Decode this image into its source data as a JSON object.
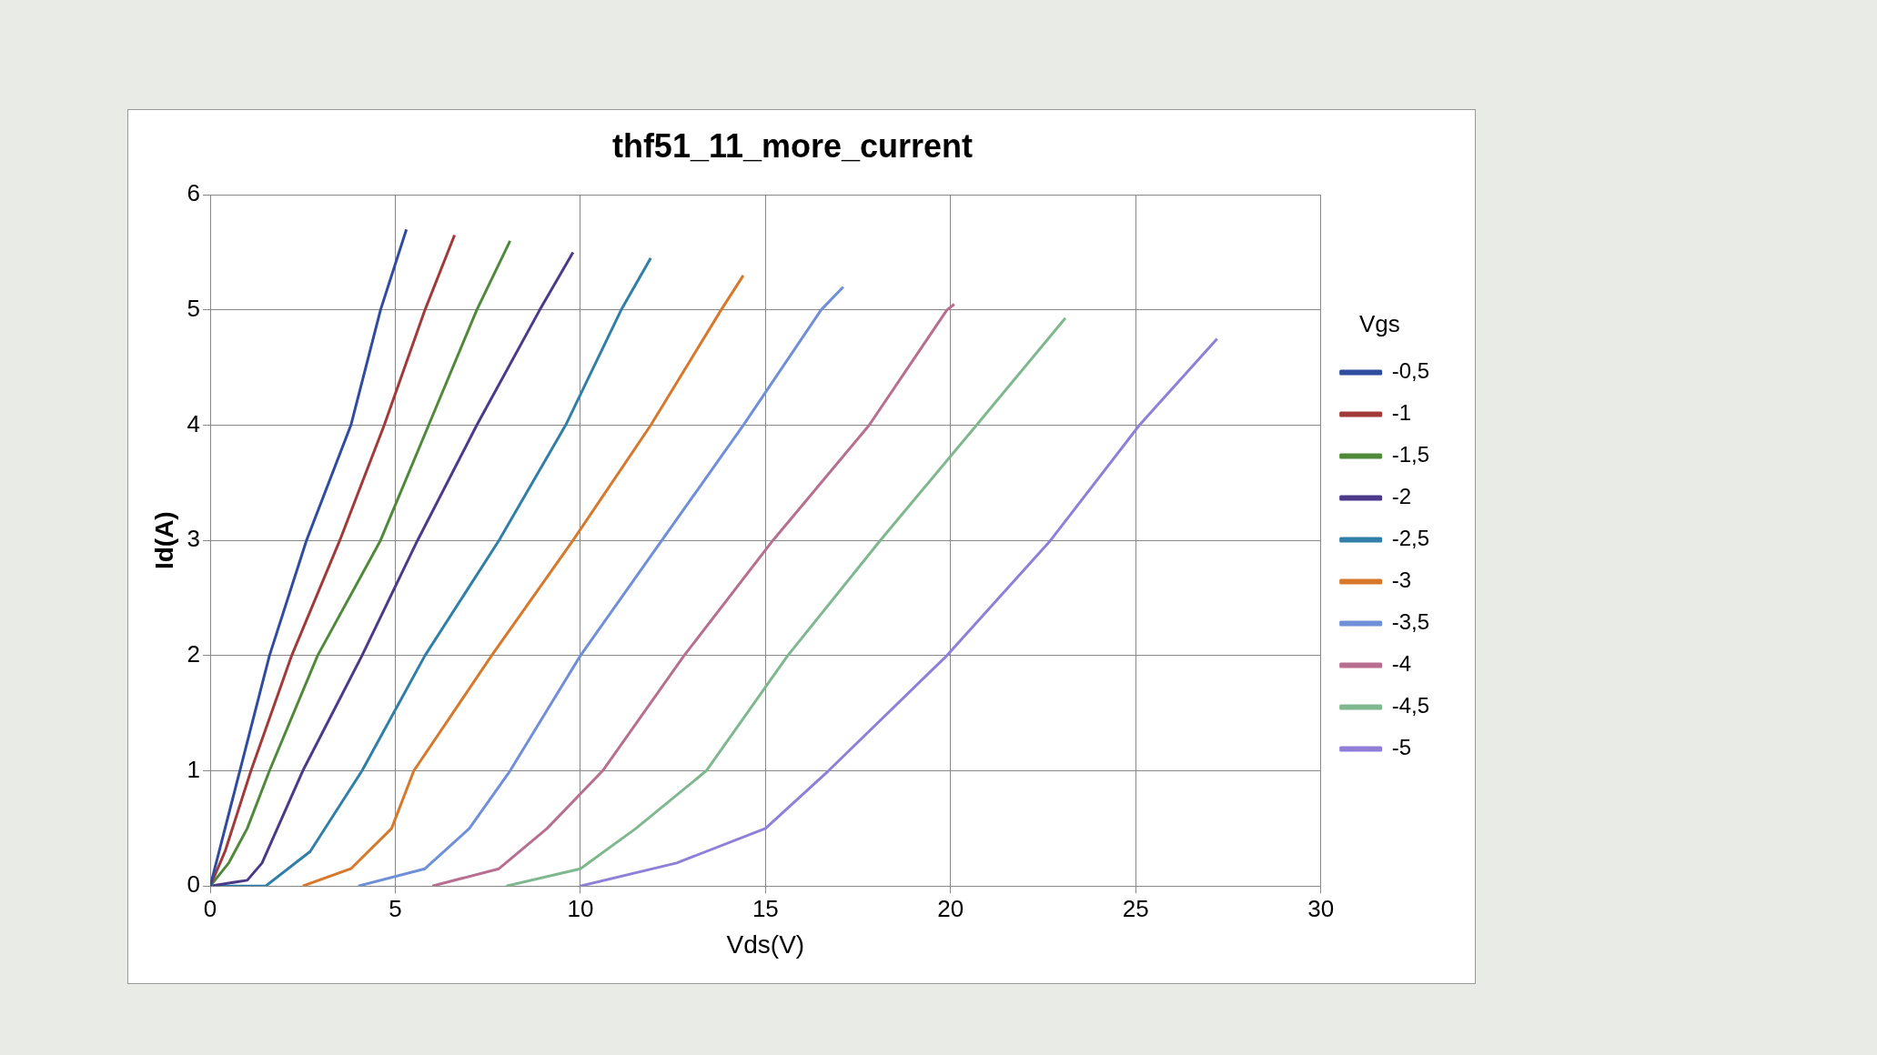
{
  "chart_data": {
    "type": "line",
    "title": "thf51_11_more_current",
    "xlabel": "Vds(V)",
    "ylabel": "Id(A)",
    "legend_title": "Vgs",
    "legend": "right",
    "grid": true,
    "marker": "none",
    "line_style": "solid",
    "xlim": [
      0,
      30
    ],
    "xticks": [
      0,
      5,
      10,
      15,
      20,
      25,
      30
    ],
    "ylim": [
      0,
      6
    ],
    "yticks": [
      0,
      1,
      2,
      3,
      4,
      5,
      6
    ],
    "series": [
      {
        "name": "-0,5",
        "color": "#2f4c9e",
        "x": [
          0,
          0.8,
          1.6,
          2.6,
          3.8,
          4.6,
          5.3
        ],
        "values": [
          0,
          1,
          2,
          3,
          4,
          5,
          5.7
        ]
      },
      {
        "name": "-1",
        "color": "#a23a3a",
        "x": [
          0,
          0.4,
          1.1,
          2.2,
          3.5,
          4.7,
          5.8,
          6.6
        ],
        "values": [
          0,
          0.3,
          1,
          2,
          3,
          4,
          5,
          5.65
        ]
      },
      {
        "name": "-1,5",
        "color": "#4f8a3a",
        "x": [
          0,
          0.5,
          1.0,
          1.6,
          2.9,
          4.6,
          5.9,
          7.2,
          8.1
        ],
        "values": [
          0,
          0.2,
          0.5,
          1,
          2,
          3,
          4,
          5,
          5.6
        ]
      },
      {
        "name": "-2",
        "color": "#4b3a8a",
        "x": [
          0,
          1.0,
          1.4,
          2.5,
          4.1,
          5.6,
          7.2,
          8.9,
          9.8
        ],
        "values": [
          0,
          0.05,
          0.2,
          1,
          2,
          3,
          4,
          5,
          5.5
        ]
      },
      {
        "name": "-2,5",
        "color": "#2f7fa8",
        "x": [
          0,
          1.5,
          2.7,
          4.1,
          5.8,
          7.8,
          9.6,
          11.1,
          11.9
        ],
        "values": [
          0,
          0,
          0.3,
          1,
          2,
          3,
          4,
          5,
          5.45
        ]
      },
      {
        "name": "-3",
        "color": "#d7782b",
        "x": [
          2.5,
          3.8,
          4.9,
          5.5,
          7.6,
          9.8,
          11.9,
          13.8,
          14.4
        ],
        "values": [
          0,
          0.15,
          0.5,
          1,
          2,
          3,
          4,
          5,
          5.3
        ]
      },
      {
        "name": "-3,5",
        "color": "#6f8fd8",
        "x": [
          4,
          5.8,
          7.0,
          8.1,
          10,
          12.2,
          14.4,
          16.5,
          17.1
        ],
        "values": [
          0,
          0.15,
          0.5,
          1,
          2,
          3,
          4,
          5,
          5.2
        ]
      },
      {
        "name": "-4",
        "color": "#b86f8f",
        "x": [
          6,
          7.8,
          9.1,
          10.6,
          12.8,
          15.2,
          17.8,
          19.9,
          20.1
        ],
        "values": [
          0,
          0.15,
          0.5,
          1,
          2,
          3,
          4,
          5,
          5.05
        ]
      },
      {
        "name": "-4,5",
        "color": "#7fb88f",
        "x": [
          8,
          10,
          11.5,
          13.4,
          15.6,
          18.1,
          20.7,
          23.1
        ],
        "values": [
          0,
          0.15,
          0.5,
          1,
          2,
          3,
          4,
          4.93
        ]
      },
      {
        "name": "-5",
        "color": "#8f7fd8",
        "x": [
          10,
          12.6,
          15.0,
          16.7,
          19.9,
          22.7,
          25.1,
          27.2
        ],
        "values": [
          0,
          0.2,
          0.5,
          1,
          2,
          3,
          4,
          4.75
        ]
      }
    ]
  }
}
